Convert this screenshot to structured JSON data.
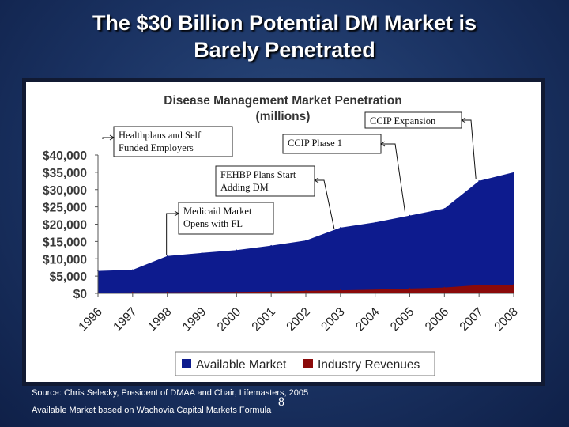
{
  "slide": {
    "title_line1": "The $30 Billion Potential DM Market is",
    "title_line2": "Barely Penetrated",
    "source_line1": "Source:  Chris Selecky, President of DMAA and Chair, Lifemasters, 2005",
    "source_line2": "Available Market based on Wachovia Capital Markets Formula",
    "page_number": "8"
  },
  "chart_data": {
    "type": "area",
    "title_line1": "Disease Management Market Penetration",
    "title_line2": "(millions)",
    "categories": [
      "1996",
      "1997",
      "1998",
      "1999",
      "2000",
      "2001",
      "2002",
      "2003",
      "2004",
      "2005",
      "2006",
      "2007",
      "2008"
    ],
    "ylim": [
      0,
      40000
    ],
    "yticks": [
      "$0",
      "$5,000",
      "$10,000",
      "$15,000",
      "$20,000",
      "$25,000",
      "$30,000",
      "$35,000",
      "$40,000"
    ],
    "series": [
      {
        "name": "Available Market",
        "color": "#0d1b8e",
        "values": [
          6500,
          6800,
          10800,
          11700,
          12500,
          13800,
          15300,
          19000,
          20500,
          22500,
          24500,
          32500,
          35000
        ]
      },
      {
        "name": "Industry Revenues",
        "color": "#8b0a0a",
        "values": [
          200,
          250,
          300,
          350,
          400,
          500,
          700,
          900,
          1100,
          1400,
          1700,
          2400,
          2500
        ]
      }
    ],
    "legend_position": "bottom",
    "annotations": [
      {
        "text_lines": [
          "Healthplans and Self",
          "Funded Employers"
        ],
        "year": "1996"
      },
      {
        "text_lines": [
          "Medicaid Market",
          "Opens with FL"
        ],
        "year": "1998"
      },
      {
        "text_lines": [
          "FEHBP Plans Start",
          "Adding DM"
        ],
        "year": "2003"
      },
      {
        "text_lines": [
          "CCIP Phase 1"
        ],
        "year": "2005"
      },
      {
        "text_lines": [
          "CCIP Expansion"
        ],
        "year": "2007"
      }
    ]
  }
}
